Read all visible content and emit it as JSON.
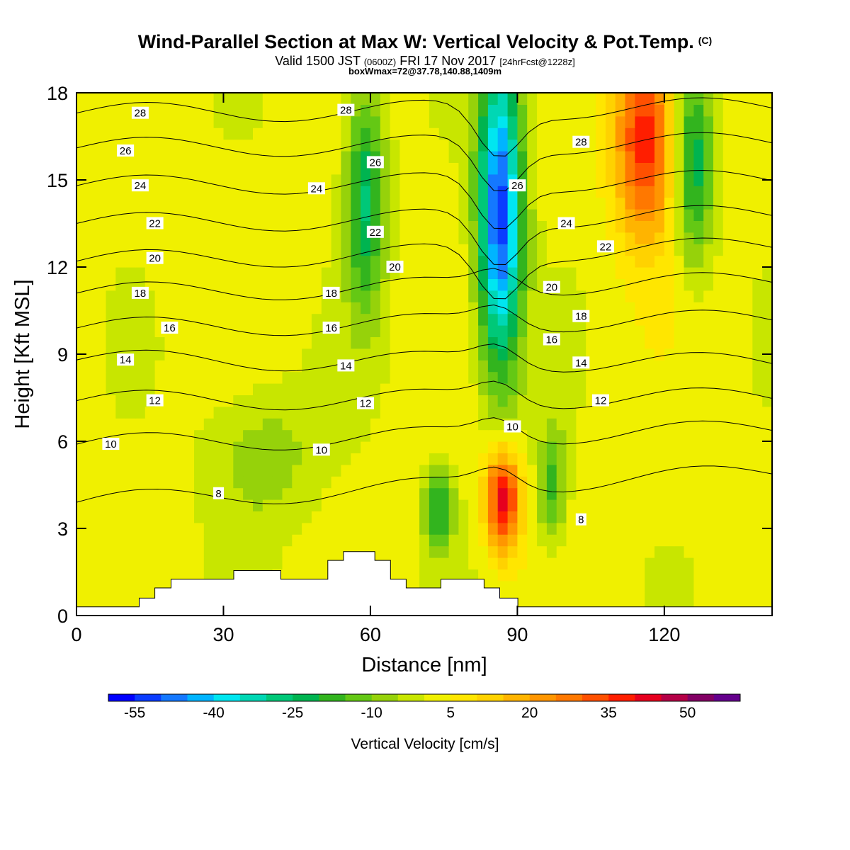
{
  "header": {
    "title": "Wind-Parallel Section at Max W: Vertical Velocity & Pot.Temp.",
    "title_unit": "(C)",
    "valid_prefix": "Valid 1500 JST",
    "valid_z": "(0600Z)",
    "valid_date": "FRI 17 Nov 2017",
    "forecast": "[24hrFcst@1228z]",
    "boxwmax": "boxWmax=72@37.78,140.88,1409m"
  },
  "chart_data": {
    "type": "heatmap",
    "title": "Wind-Parallel Section at Max W: Vertical Velocity & Pot.Temp.",
    "xlabel": "Distance [nm]",
    "ylabel": "Height [Kft MSL]",
    "xlim": [
      0,
      142
    ],
    "ylim": [
      0,
      18
    ],
    "xticks": [
      0,
      30,
      60,
      90,
      120
    ],
    "yticks": [
      0,
      3,
      6,
      9,
      12,
      15,
      18
    ],
    "colorbar": {
      "label": "Vertical Velocity [cm/s]",
      "tick_labels": [
        "-55",
        "-40",
        "-25",
        "-10",
        "5",
        "20",
        "35",
        "50"
      ],
      "tick_values": [
        -55,
        -40,
        -25,
        -10,
        5,
        20,
        35,
        50
      ],
      "range": [
        -60,
        60
      ],
      "colors": [
        "#0000ff",
        "#0a3cff",
        "#1478ff",
        "#00b4ff",
        "#00e6f0",
        "#00d7b4",
        "#00c878",
        "#00b450",
        "#32b41e",
        "#64c814",
        "#96d20a",
        "#c8e600",
        "#f0f000",
        "#ffe600",
        "#ffd200",
        "#ffb400",
        "#ff9600",
        "#ff7800",
        "#ff5000",
        "#ff1e00",
        "#e6001e",
        "#b40046",
        "#820064",
        "#64008c"
      ]
    },
    "w_features": [
      {
        "x": 86.5,
        "z": 13.8,
        "w": -55,
        "rx": 4.5,
        "rz": 5.5
      },
      {
        "x": 87,
        "z": 4.0,
        "w": 42,
        "rx": 3.5,
        "rz": 1.8
      },
      {
        "x": 116,
        "z": 16.5,
        "w": 38,
        "rx": 6,
        "rz": 3.5
      },
      {
        "x": 59,
        "z": 14.5,
        "w": -28,
        "rx": 4,
        "rz": 4
      },
      {
        "x": 126,
        "z": 15.5,
        "w": -25,
        "rx": 4,
        "rz": 3.5
      },
      {
        "x": 74,
        "z": 3.7,
        "w": -22,
        "rx": 3,
        "rz": 1.5
      },
      {
        "x": 97,
        "z": 4.5,
        "w": -18,
        "rx": 3,
        "rz": 2
      },
      {
        "x": 38,
        "z": 5.5,
        "w": -10,
        "rx": 12,
        "rz": 2.5
      }
    ],
    "theta_contours": [
      {
        "label": "8",
        "z_left": 3.9,
        "z_right": 4.9
      },
      {
        "label": "10",
        "z_left": 5.9,
        "z_right": 6.4
      },
      {
        "label": "12",
        "z_left": 7.4,
        "z_right": 7.5
      },
      {
        "label": "14",
        "z_left": 8.8,
        "z_right": 8.7
      },
      {
        "label": "16",
        "z_left": 9.9,
        "z_right": 10.2
      },
      {
        "label": "18",
        "z_left": 11.1,
        "z_right": 11.5
      },
      {
        "label": "20",
        "z_left": 12.2,
        "z_right": 12.7
      },
      {
        "label": "22",
        "z_left": 13.5,
        "z_right": 13.8
      },
      {
        "label": "24",
        "z_left": 14.8,
        "z_right": 15.0
      },
      {
        "label": "26",
        "z_left": 16.1,
        "z_right": 16.3
      },
      {
        "label": "28",
        "z_left": 17.3,
        "z_right": 17.5
      }
    ],
    "contour_labels": [
      {
        "text": "28",
        "x": 13,
        "z": 17.3
      },
      {
        "text": "28",
        "x": 55,
        "z": 17.4
      },
      {
        "text": "28",
        "x": 103,
        "z": 16.3
      },
      {
        "text": "26",
        "x": 10,
        "z": 16.0
      },
      {
        "text": "26",
        "x": 61,
        "z": 15.6
      },
      {
        "text": "26",
        "x": 90,
        "z": 14.8
      },
      {
        "text": "24",
        "x": 13,
        "z": 14.8
      },
      {
        "text": "24",
        "x": 49,
        "z": 14.7
      },
      {
        "text": "24",
        "x": 100,
        "z": 13.5
      },
      {
        "text": "22",
        "x": 16,
        "z": 13.5
      },
      {
        "text": "22",
        "x": 61,
        "z": 13.2
      },
      {
        "text": "22",
        "x": 108,
        "z": 12.7
      },
      {
        "text": "20",
        "x": 16,
        "z": 12.3
      },
      {
        "text": "20",
        "x": 65,
        "z": 12.0
      },
      {
        "text": "20",
        "x": 97,
        "z": 11.3
      },
      {
        "text": "18",
        "x": 13,
        "z": 11.1
      },
      {
        "text": "18",
        "x": 52,
        "z": 11.1
      },
      {
        "text": "18",
        "x": 103,
        "z": 10.3
      },
      {
        "text": "16",
        "x": 19,
        "z": 9.9
      },
      {
        "text": "16",
        "x": 52,
        "z": 9.9
      },
      {
        "text": "16",
        "x": 97,
        "z": 9.5
      },
      {
        "text": "14",
        "x": 10,
        "z": 8.8
      },
      {
        "text": "14",
        "x": 55,
        "z": 8.6
      },
      {
        "text": "14",
        "x": 103,
        "z": 8.7
      },
      {
        "text": "12",
        "x": 16,
        "z": 7.4
      },
      {
        "text": "12",
        "x": 59,
        "z": 7.3
      },
      {
        "text": "12",
        "x": 107,
        "z": 7.4
      },
      {
        "text": "10",
        "x": 7,
        "z": 5.9
      },
      {
        "text": "10",
        "x": 50,
        "z": 5.7
      },
      {
        "text": "10",
        "x": 89,
        "z": 6.5
      },
      {
        "text": "8",
        "x": 29,
        "z": 4.2
      },
      {
        "text": "8",
        "x": 103,
        "z": 3.3
      }
    ],
    "terrain": [
      [
        0,
        0.3
      ],
      [
        12.8,
        0.3
      ],
      [
        12.8,
        0.6
      ],
      [
        16,
        0.6
      ],
      [
        16,
        0.95
      ],
      [
        19.3,
        0.95
      ],
      [
        19.3,
        1.25
      ],
      [
        32.1,
        1.25
      ],
      [
        32.1,
        1.55
      ],
      [
        41.7,
        1.55
      ],
      [
        41.7,
        1.25
      ],
      [
        51.3,
        1.25
      ],
      [
        51.3,
        1.9
      ],
      [
        54.5,
        1.9
      ],
      [
        54.5,
        2.2
      ],
      [
        60.9,
        2.2
      ],
      [
        60.9,
        1.9
      ],
      [
        64.1,
        1.9
      ],
      [
        64.1,
        1.25
      ],
      [
        67.3,
        1.25
      ],
      [
        67.3,
        0.95
      ],
      [
        74.4,
        0.95
      ],
      [
        74.4,
        1.25
      ],
      [
        83.2,
        1.25
      ],
      [
        83.2,
        0.95
      ],
      [
        86.4,
        0.95
      ],
      [
        86.4,
        0.6
      ],
      [
        90.1,
        0.6
      ],
      [
        90.1,
        0.3
      ],
      [
        142,
        0.3
      ]
    ]
  }
}
